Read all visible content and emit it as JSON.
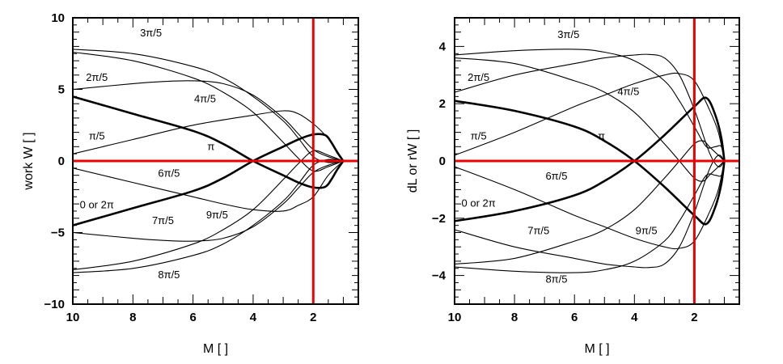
{
  "chart_data": [
    {
      "type": "line",
      "xlabel": "M [ ]",
      "ylabel": "work W [ ]",
      "xlim": [
        10,
        0.5
      ],
      "ylim": [
        -10,
        10
      ],
      "x_ticks": [
        10,
        8,
        6,
        4,
        2
      ],
      "y_ticks": [
        -10,
        -5,
        0,
        5,
        10
      ],
      "reference_lines": {
        "x": 2,
        "y": 0,
        "color": "#ee0000"
      },
      "series": [
        {
          "label_text": "0 or 2π",
          "bold": true,
          "x": [
            10,
            8,
            6,
            5,
            4,
            3,
            2.5,
            2,
            1.6,
            1.4,
            1.2,
            1.0
          ],
          "y": [
            -4.5,
            -3.3,
            -2.1,
            -1.2,
            0,
            1.0,
            1.5,
            1.85,
            1.8,
            1.3,
            0.6,
            0
          ]
        },
        {
          "label_text": "π",
          "bold": true,
          "x": [
            10,
            8,
            6,
            5,
            4,
            3,
            2.5,
            2,
            1.6,
            1.4,
            1.2,
            1.0
          ],
          "y": [
            4.5,
            3.3,
            2.1,
            1.2,
            0,
            -1.0,
            -1.5,
            -1.85,
            -1.8,
            -1.3,
            -0.6,
            0
          ]
        },
        {
          "label_text": "π/5",
          "bold": false,
          "x": [
            10,
            8,
            6,
            4,
            3,
            2.5,
            2,
            1.6,
            1.3,
            1.0
          ],
          "y": [
            0.5,
            1.5,
            2.5,
            3.2,
            3.5,
            3.3,
            2.6,
            1.8,
            1.0,
            0
          ]
        },
        {
          "label_text": "2π/5",
          "bold": false,
          "x": [
            10,
            8,
            7,
            6,
            5,
            4,
            3,
            2.5,
            2,
            1.5,
            1.0
          ],
          "y": [
            5.0,
            5.4,
            5.55,
            5.6,
            5.4,
            4.6,
            3.0,
            1.9,
            0.8,
            0.3,
            0
          ]
        },
        {
          "label_text": "3π/5",
          "bold": false,
          "x": [
            10,
            8,
            6,
            5,
            4,
            3,
            2.5,
            2,
            1.5,
            1.0
          ],
          "y": [
            7.8,
            7.5,
            6.6,
            5.8,
            4.5,
            2.8,
            1.6,
            0.3,
            -0.1,
            0
          ]
        },
        {
          "label_text": "4π/5",
          "bold": false,
          "x": [
            10,
            8,
            6,
            5,
            4,
            3,
            2.5,
            2,
            1.5,
            1.0
          ],
          "y": [
            7.6,
            7.0,
            5.8,
            4.8,
            3.4,
            1.3,
            0.2,
            -0.7,
            -0.4,
            0
          ]
        },
        {
          "label_text": "6π/5",
          "bold": false,
          "x": [
            10,
            8,
            6,
            5,
            4,
            3,
            2.5,
            2,
            1.5,
            1.0
          ],
          "y": [
            -0.5,
            -1.5,
            -2.5,
            -3.0,
            -3.4,
            -3.5,
            -3.1,
            -2.5,
            -1.0,
            0
          ]
        },
        {
          "label_text": "7π/5",
          "bold": false,
          "x": [
            10,
            8,
            7,
            6,
            5,
            4,
            3,
            2.5,
            2,
            1.5,
            1.0
          ],
          "y": [
            -5.0,
            -5.4,
            -5.55,
            -5.6,
            -5.4,
            -4.6,
            -3.0,
            -1.9,
            -0.8,
            -0.3,
            0
          ]
        },
        {
          "label_text": "8π/5",
          "bold": false,
          "x": [
            10,
            8,
            6,
            5,
            4,
            3,
            2.5,
            2,
            1.5,
            1.0
          ],
          "y": [
            -7.8,
            -7.5,
            -6.6,
            -5.8,
            -4.5,
            -2.8,
            -1.6,
            -0.3,
            0.1,
            0
          ]
        },
        {
          "label_text": "9π/5",
          "bold": false,
          "x": [
            10,
            8,
            6,
            5,
            4,
            3,
            2.5,
            2,
            1.5,
            1.0
          ],
          "y": [
            -7.6,
            -7.0,
            -5.8,
            -4.8,
            -3.4,
            -1.3,
            -0.2,
            0.7,
            0.4,
            0
          ]
        }
      ]
    },
    {
      "type": "line",
      "xlabel": "M [ ]",
      "ylabel": "dL or rW [ ]",
      "xlim": [
        10,
        0.5
      ],
      "ylim": [
        -5,
        5
      ],
      "x_ticks": [
        10,
        8,
        6,
        4,
        2
      ],
      "y_ticks": [
        -4,
        -2,
        0,
        2,
        4
      ],
      "reference_lines": {
        "x": 2,
        "y": 0,
        "color": "#ee0000"
      },
      "series": [
        {
          "label_text": "0 or 2π",
          "bold": true,
          "x": [
            10,
            8,
            6,
            5,
            4,
            3,
            2,
            1.6,
            1.3,
            1.1,
            1.0
          ],
          "y": [
            -2.1,
            -1.75,
            -1.2,
            -0.7,
            0,
            0.9,
            1.9,
            2.2,
            1.6,
            0.8,
            0
          ]
        },
        {
          "label_text": "π",
          "bold": true,
          "x": [
            10,
            8,
            6,
            5,
            4,
            3,
            2,
            1.6,
            1.3,
            1.1,
            1.0
          ],
          "y": [
            2.1,
            1.75,
            1.2,
            0.7,
            0,
            -0.9,
            -1.9,
            -2.2,
            -1.6,
            -0.8,
            0
          ]
        },
        {
          "label_text": "π/5",
          "bold": false,
          "x": [
            10,
            8,
            6,
            5,
            4,
            3,
            2.5,
            2,
            1.5,
            1.2,
            1.0
          ],
          "y": [
            0.2,
            1.0,
            1.9,
            2.3,
            2.7,
            3.0,
            3.05,
            2.8,
            1.8,
            1.0,
            0
          ]
        },
        {
          "label_text": "3π/5",
          "bold": false,
          "x": [
            10,
            8,
            6,
            5,
            4,
            3,
            2.5,
            2,
            1.6,
            1.3,
            1.1,
            1.0
          ],
          "y": [
            3.7,
            3.85,
            3.9,
            3.8,
            3.5,
            2.8,
            2.1,
            1.2,
            0.5,
            0.5,
            0.5,
            0
          ]
        },
        {
          "label_text": "2π/5",
          "bold": false,
          "x": [
            10,
            8,
            6,
            5,
            4,
            3.5,
            3,
            2.5,
            2,
            1.5,
            1.2,
            1.0
          ],
          "y": [
            2.4,
            3.0,
            3.4,
            3.6,
            3.7,
            3.72,
            3.6,
            3.0,
            1.8,
            0.3,
            -0.2,
            0
          ]
        },
        {
          "label_text": "4π/5",
          "bold": false,
          "x": [
            10,
            8,
            6,
            5,
            4,
            3,
            2.5,
            2,
            1.7,
            1.5,
            1.2,
            1.0
          ],
          "y": [
            3.6,
            3.4,
            2.8,
            2.4,
            1.7,
            0.6,
            0,
            -0.6,
            -0.7,
            -0.5,
            -0.2,
            0
          ]
        },
        {
          "label_text": "6π/5",
          "bold": false,
          "x": [
            10,
            8,
            6,
            5,
            4,
            3,
            2.5,
            2,
            1.5,
            1.2,
            1.0
          ],
          "y": [
            -0.2,
            -1.0,
            -1.9,
            -2.3,
            -2.7,
            -3.0,
            -3.05,
            -2.8,
            -1.8,
            -1.0,
            0
          ]
        },
        {
          "label_text": "8π/5",
          "bold": false,
          "x": [
            10,
            8,
            6,
            5,
            4,
            3,
            2.5,
            2,
            1.6,
            1.3,
            1.1,
            1.0
          ],
          "y": [
            -3.7,
            -3.85,
            -3.9,
            -3.8,
            -3.5,
            -2.8,
            -2.1,
            -1.2,
            -0.5,
            -0.5,
            -0.5,
            0
          ]
        },
        {
          "label_text": "7π/5",
          "bold": false,
          "x": [
            10,
            8,
            6,
            5,
            4,
            3.5,
            3,
            2.5,
            2,
            1.5,
            1.2,
            1.0
          ],
          "y": [
            -2.4,
            -3.0,
            -3.4,
            -3.6,
            -3.7,
            -3.72,
            -3.6,
            -3.0,
            -1.8,
            -0.3,
            0.2,
            0
          ]
        },
        {
          "label_text": "9π/5",
          "bold": false,
          "x": [
            10,
            8,
            6,
            5,
            4,
            3,
            2.5,
            2,
            1.7,
            1.5,
            1.2,
            1.0
          ],
          "y": [
            -3.6,
            -3.4,
            -2.8,
            -2.4,
            -1.7,
            -0.6,
            0,
            0.6,
            0.7,
            0.5,
            0.2,
            0
          ]
        }
      ]
    }
  ]
}
